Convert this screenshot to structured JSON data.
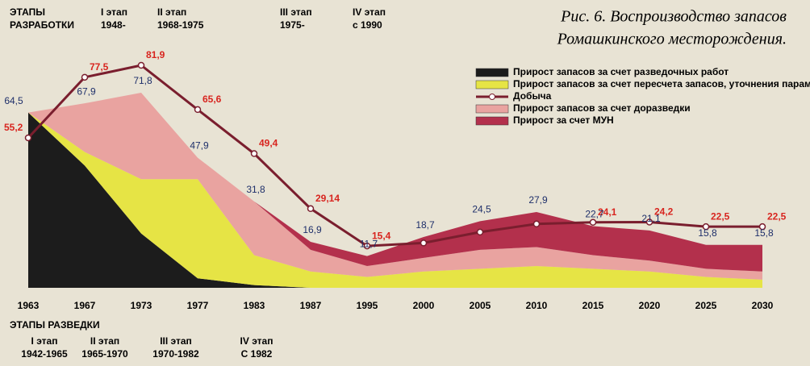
{
  "chart_data": {
    "type": "stacked_area_line",
    "title": [
      "Рис. 6. Воспроизводство запасов",
      "Ромашкинского месторождения."
    ],
    "development_stages": {
      "heading": [
        "ЭТАПЫ",
        "РАЗРАБОТКИ"
      ],
      "items": [
        [
          "I этап",
          "1948-"
        ],
        [
          "II этап",
          "1968-1975"
        ],
        [
          "III этап",
          "1975-"
        ],
        [
          "IV этап",
          "с 1990"
        ]
      ]
    },
    "exploration_stages": {
      "heading": "ЭТАПЫ РАЗВЕДКИ",
      "items": [
        [
          "I этап",
          "1942-1965"
        ],
        [
          "II этап",
          "1965-1970"
        ],
        [
          "III этап",
          "1970-1982"
        ],
        [
          "IV этап",
          "С 1982"
        ]
      ]
    },
    "categories": [
      "1963",
      "1967",
      "1973",
      "1977",
      "1983",
      "1987",
      "1995",
      "2000",
      "2005",
      "2010",
      "2015",
      "2020",
      "2025",
      "2030"
    ],
    "series": [
      {
        "name": "Прирост запасов за счет разведочных работ",
        "color": "#1c1c1c",
        "values": [
          64.5,
          45,
          20,
          3.5,
          1,
          0,
          0,
          0,
          0,
          0,
          0,
          0,
          0,
          0
        ]
      },
      {
        "name": "Прирост запасов за счет пересчета запасов, уточнения параметров",
        "color": "#e6e445",
        "values": [
          0,
          5,
          20,
          36.5,
          11,
          6,
          4,
          6,
          7,
          8,
          7,
          6,
          4,
          3
        ]
      },
      {
        "name": "Прирост запасов за счет доразведки",
        "color": "#e9a3a0",
        "values": [
          0,
          17.9,
          31.8,
          7.9,
          19.8,
          8,
          4,
          5,
          7,
          7,
          5,
          4,
          3,
          3
        ]
      },
      {
        "name": "Прирост за счет  МУН",
        "color": "#b3304c",
        "values": [
          0,
          0,
          0,
          0,
          0,
          2.9,
          3.7,
          7.7,
          10.5,
          12.9,
          10.7,
          11.1,
          8.8,
          9.8
        ]
      }
    ],
    "totals": {
      "values": [
        64.5,
        67.9,
        71.8,
        47.9,
        31.8,
        16.9,
        11.7,
        18.7,
        24.5,
        27.9,
        22.7,
        21.1,
        15.8,
        15.8
      ],
      "value_labels": [
        "64,5",
        "67,9",
        "71,8",
        "47,9",
        "31,8",
        "16,9",
        "11,7",
        "18,7",
        "24,5",
        "27,9",
        "22,7",
        "21,1",
        "15,8",
        "15,8"
      ]
    },
    "line": {
      "name": "Добыча",
      "color": "#7a1e2e",
      "label_color": "#d8251f",
      "values": [
        55.2,
        77.5,
        81.9,
        65.6,
        49.4,
        29.14,
        15.4,
        16.5,
        20.5,
        23.5,
        24.1,
        24.2,
        22.5,
        22.5
      ],
      "value_labels": [
        "55,2",
        "77,5",
        "81,9",
        "65,6",
        "49,4",
        "29,14",
        "15,4",
        null,
        null,
        null,
        "24,1",
        "24,2",
        "22,5",
        "22,5"
      ]
    }
  }
}
